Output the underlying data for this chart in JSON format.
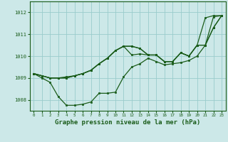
{
  "xlabel": "Graphe pression niveau de la mer (hPa)",
  "x_ticks": [
    0,
    1,
    2,
    3,
    4,
    5,
    6,
    7,
    8,
    9,
    10,
    11,
    12,
    13,
    14,
    15,
    16,
    17,
    18,
    19,
    20,
    21,
    22,
    23
  ],
  "ylim": [
    1007.5,
    1012.5
  ],
  "yticks": [
    1008,
    1009,
    1010,
    1011,
    1012
  ],
  "background_color": "#cce8e8",
  "grid_color": "#99cccc",
  "line_color": "#1a5c1a",
  "series": [
    [
      1009.2,
      1009.1,
      1009.0,
      1009.0,
      1009.05,
      1009.1,
      1009.2,
      1009.35,
      1009.65,
      1009.9,
      1010.25,
      1010.45,
      1010.45,
      1010.35,
      1010.05,
      1010.05,
      1009.75,
      1009.75,
      1010.15,
      1010.0,
      1010.5,
      1011.75,
      1011.85,
      1011.85
    ],
    [
      1009.2,
      1009.0,
      1008.8,
      1008.15,
      1007.75,
      1007.75,
      1007.8,
      1007.9,
      1008.3,
      1008.3,
      1008.35,
      1009.05,
      1009.5,
      1009.65,
      1009.9,
      1009.75,
      1009.6,
      1009.65,
      1009.7,
      1009.8,
      1010.0,
      1010.5,
      1011.8,
      1011.85
    ],
    [
      1009.2,
      1009.1,
      1009.0,
      1009.0,
      1009.0,
      1009.1,
      1009.2,
      1009.35,
      1009.65,
      1009.9,
      1010.25,
      1010.45,
      1010.45,
      1010.35,
      1010.05,
      1010.05,
      1009.75,
      1009.75,
      1010.15,
      1010.0,
      1010.5,
      1010.5,
      1011.3,
      1011.85
    ],
    [
      1009.2,
      1009.1,
      1009.0,
      1009.0,
      1009.0,
      1009.1,
      1009.2,
      1009.35,
      1009.65,
      1009.9,
      1010.25,
      1010.45,
      1010.05,
      1010.1,
      1010.05,
      1010.05,
      1009.75,
      1009.75,
      1010.15,
      1010.0,
      1010.5,
      1010.5,
      1011.3,
      1011.85
    ]
  ]
}
